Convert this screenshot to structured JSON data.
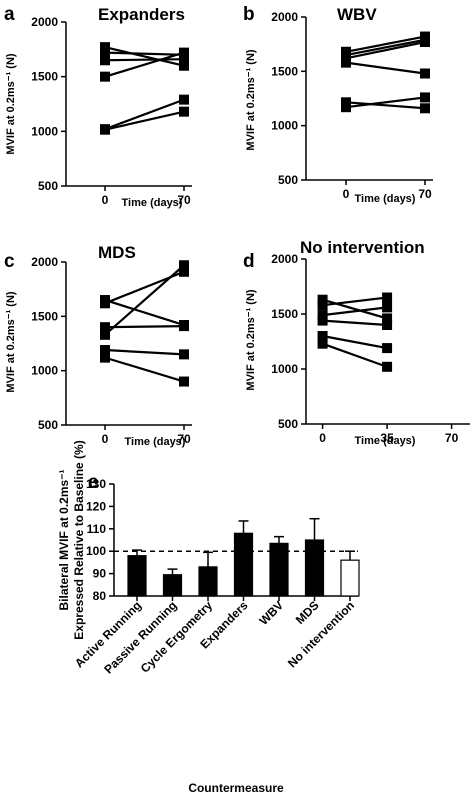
{
  "chart_data": [
    {
      "panel": "a",
      "type": "line",
      "title": "Expanders",
      "xlabel": "Time (days)",
      "ylabel": "MVIF at 0.2ms⁻¹ (N)",
      "x": [
        0,
        70
      ],
      "x_ticks": [
        "0",
        "70"
      ],
      "y_ticks": [
        "500",
        "1000",
        "1500",
        "2000"
      ],
      "ylim": [
        500,
        2000
      ],
      "series": [
        {
          "values": [
            1770,
            1600
          ]
        },
        {
          "values": [
            1720,
            1700
          ]
        },
        {
          "values": [
            1650,
            1660
          ]
        },
        {
          "values": [
            1500,
            1720
          ]
        },
        {
          "values": [
            1020,
            1290
          ]
        },
        {
          "values": [
            1015,
            1180
          ]
        }
      ]
    },
    {
      "panel": "b",
      "type": "line",
      "title": "WBV",
      "xlabel": "Time (days)",
      "ylabel": "MVIF at 0.2ms⁻¹ (N)",
      "x": [
        0,
        70
      ],
      "x_ticks": [
        "0",
        "70"
      ],
      "y_ticks": [
        "500",
        "1000",
        "1500",
        "2000"
      ],
      "ylim": [
        500,
        2000
      ],
      "series": [
        {
          "values": [
            1680,
            1820
          ]
        },
        {
          "values": [
            1650,
            1790
          ]
        },
        {
          "values": [
            1620,
            1770
          ]
        },
        {
          "values": [
            1580,
            1480
          ]
        },
        {
          "values": [
            1215,
            1160
          ]
        },
        {
          "values": [
            1170,
            1260
          ]
        }
      ]
    },
    {
      "panel": "c",
      "type": "line",
      "title": "MDS",
      "xlabel": "Time (days)",
      "ylabel": "MVIF at 0.2ms⁻¹ (N)",
      "x": [
        0,
        70
      ],
      "x_ticks": [
        "0",
        "70"
      ],
      "y_ticks": [
        "500",
        "1000",
        "1500",
        "2000"
      ],
      "ylim": [
        500,
        2000
      ],
      "series": [
        {
          "values": [
            1650,
            1420
          ]
        },
        {
          "values": [
            1620,
            1910
          ]
        },
        {
          "values": [
            1400,
            1410
          ]
        },
        {
          "values": [
            1330,
            1970
          ]
        },
        {
          "values": [
            1190,
            1150
          ]
        },
        {
          "values": [
            1120,
            900
          ]
        }
      ]
    },
    {
      "panel": "d",
      "type": "line",
      "title": "No intervention",
      "xlabel": "Time (days)",
      "ylabel": "MVIF at 0.2ms⁻¹ (N)",
      "x": [
        0,
        35
      ],
      "x_ticks": [
        "0",
        "35",
        "70"
      ],
      "xlim": [
        -9,
        80
      ],
      "y_ticks": [
        "500",
        "1000",
        "1500",
        "2000"
      ],
      "ylim": [
        500,
        2000
      ],
      "series": [
        {
          "values": [
            1630,
            1460
          ]
        },
        {
          "values": [
            1580,
            1650
          ]
        },
        {
          "values": [
            1490,
            1560
          ]
        },
        {
          "values": [
            1440,
            1400
          ]
        },
        {
          "values": [
            1300,
            1190
          ]
        },
        {
          "values": [
            1230,
            1020
          ]
        }
      ]
    },
    {
      "panel": "e",
      "type": "bar",
      "xlabel": "Countermeasure",
      "ylabel_lines": [
        "Bilateral MVIF at 0.2ms⁻¹",
        "Expressed Relative to Baseline (%)"
      ],
      "categories": [
        "Active Running",
        "Passive Running",
        "Cycle Ergometry",
        "Expanders",
        "WBV",
        "MDS",
        "No intervention"
      ],
      "values": [
        98,
        89.5,
        93,
        108,
        103.5,
        105,
        96
      ],
      "errors": [
        2.5,
        2.5,
        6.5,
        5.5,
        3,
        9.5,
        4
      ],
      "fill": [
        "#000000",
        "#000000",
        "#000000",
        "#000000",
        "#000000",
        "#000000",
        "#ffffff"
      ],
      "ylim": [
        80,
        130
      ],
      "y_ticks": [
        "80",
        "90",
        "100",
        "110",
        "120",
        "130"
      ],
      "reference_line": 100
    }
  ]
}
